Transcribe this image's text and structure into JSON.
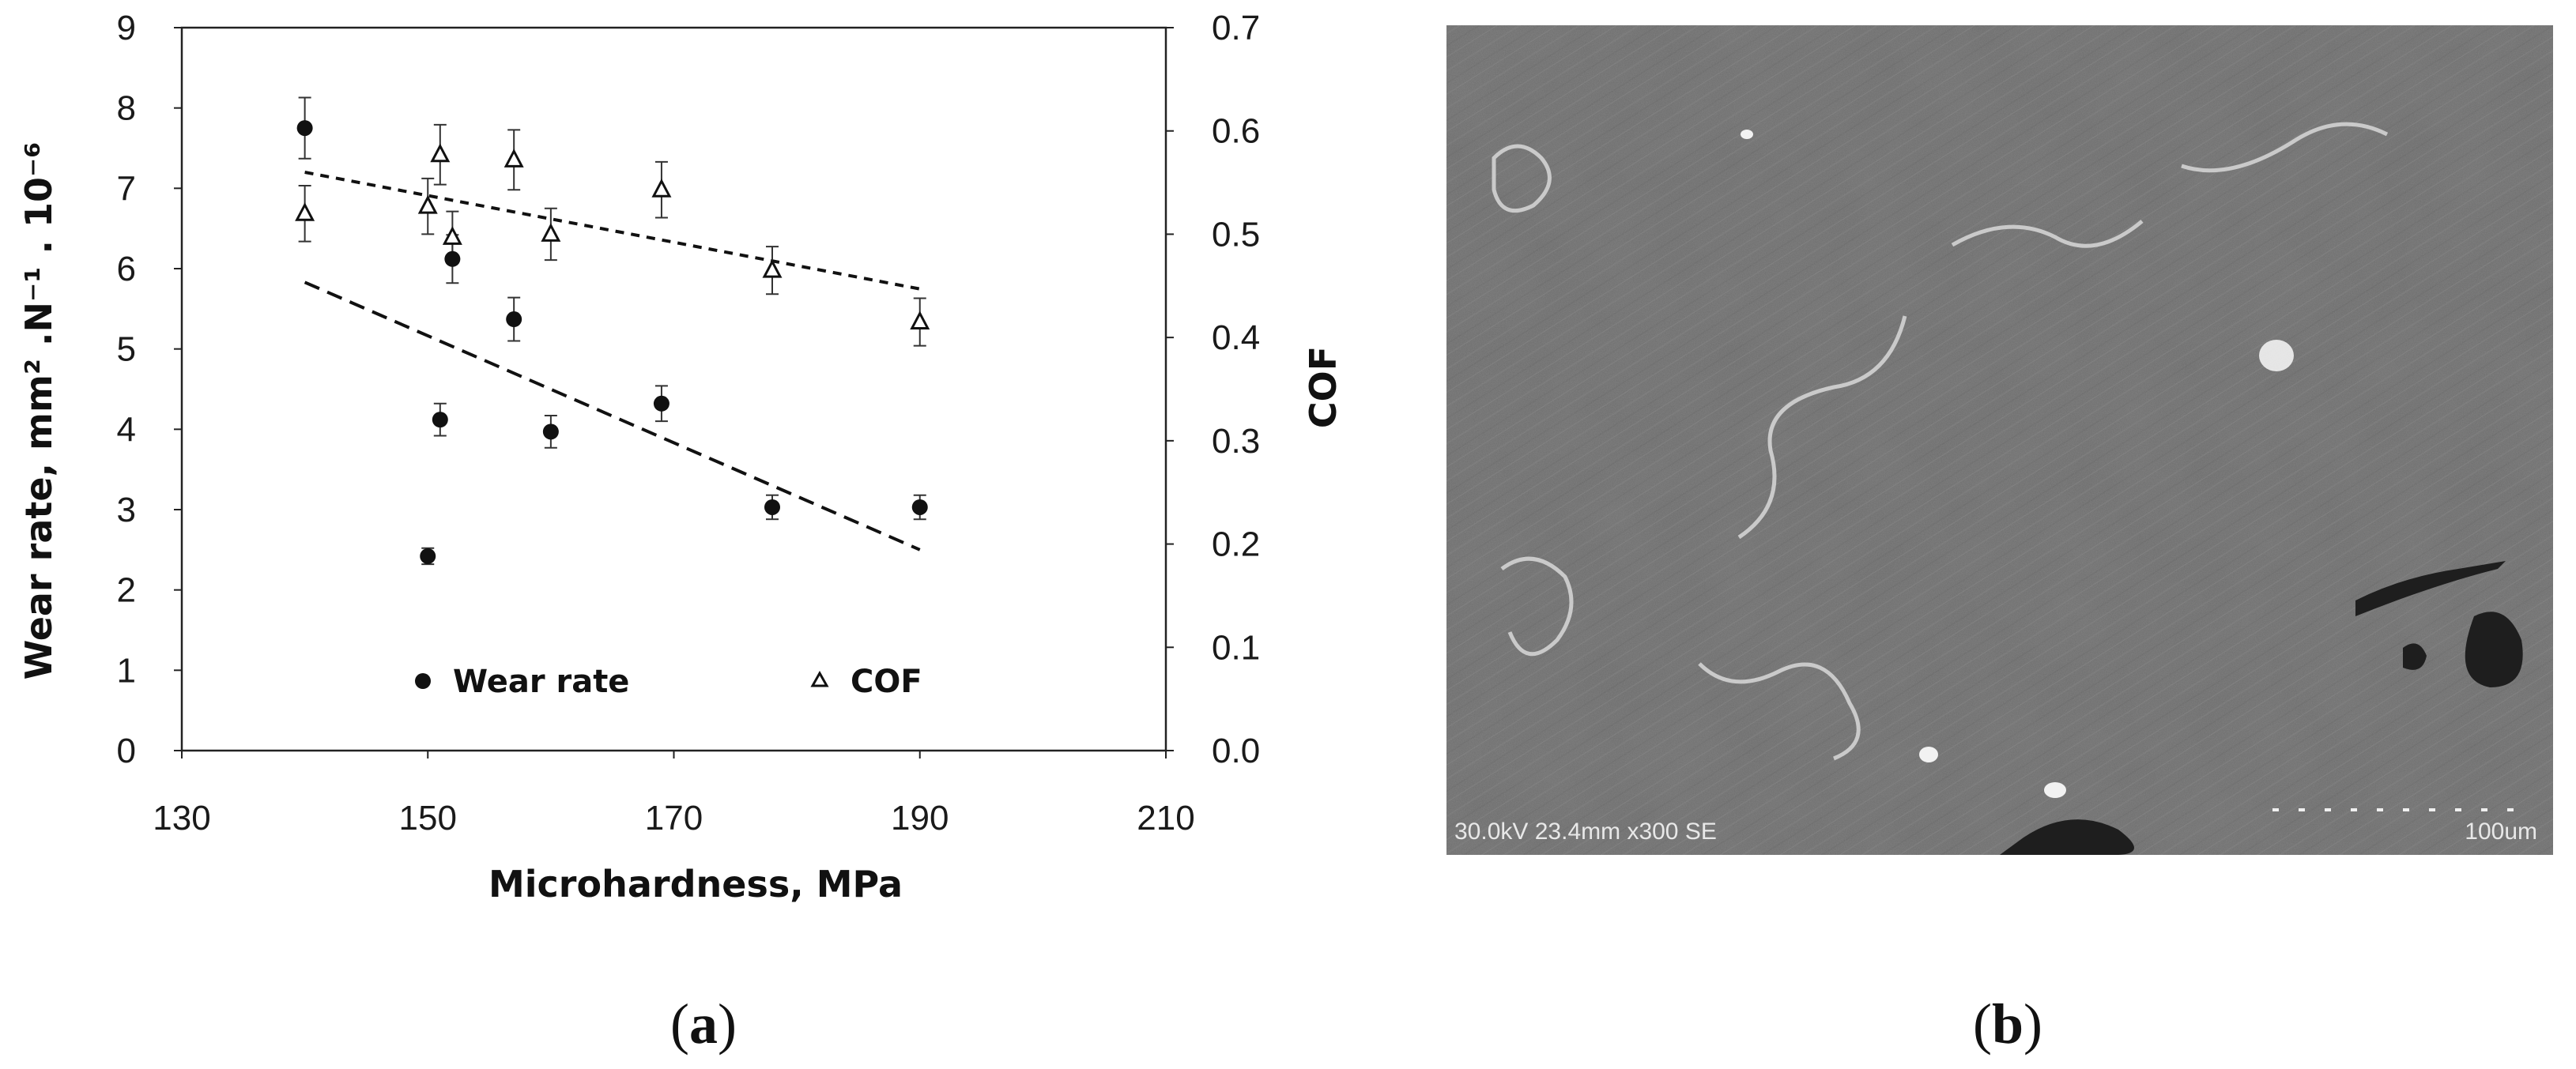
{
  "chart_data": {
    "type": "scatter",
    "xlabel": "Microhardness, MPa",
    "ylabel": "Wear rate,  mm² .N⁻¹ . 10⁻⁶",
    "y2label": "COF",
    "xlim": [
      130,
      210
    ],
    "ylim": [
      0,
      9
    ],
    "y2lim": [
      0.0,
      0.7
    ],
    "xticks": [
      "130",
      "150",
      "170",
      "190",
      "210"
    ],
    "yticks": [
      "0",
      "1",
      "2",
      "3",
      "4",
      "5",
      "6",
      "7",
      "8",
      "9"
    ],
    "y2ticks": [
      "0.0",
      "0.1",
      "0.2",
      "0.3",
      "0.4",
      "0.5",
      "0.6",
      "0.7"
    ],
    "grid": false,
    "legend_position": "bottom",
    "series": [
      {
        "name": "Wear rate",
        "axis": "left",
        "marker": "filled-circle",
        "points": [
          {
            "x": 140,
            "y": 7.75,
            "err": 0.38
          },
          {
            "x": 150,
            "y": 2.42,
            "err": 0.1
          },
          {
            "x": 151,
            "y": 4.12,
            "err": 0.2
          },
          {
            "x": 152,
            "y": 6.12,
            "err": 0.3
          },
          {
            "x": 157,
            "y": 5.37,
            "err": 0.27
          },
          {
            "x": 160,
            "y": 3.97,
            "err": 0.2
          },
          {
            "x": 169,
            "y": 4.32,
            "err": 0.22
          },
          {
            "x": 178,
            "y": 3.03,
            "err": 0.15
          },
          {
            "x": 190,
            "y": 3.03,
            "err": 0.15
          }
        ],
        "trendline": {
          "x": [
            140,
            190
          ],
          "y": [
            5.83,
            2.5
          ]
        }
      },
      {
        "name": "COF",
        "axis": "right",
        "marker": "open-triangle",
        "points": [
          {
            "x": 140,
            "y": 0.52,
            "err": 0.027
          },
          {
            "x": 150,
            "y": 0.527,
            "err": 0.027
          },
          {
            "x": 151,
            "y": 0.577,
            "err": 0.029
          },
          {
            "x": 152,
            "y": 0.497,
            "err": 0.025
          },
          {
            "x": 157,
            "y": 0.572,
            "err": 0.029
          },
          {
            "x": 160,
            "y": 0.5,
            "err": 0.025
          },
          {
            "x": 169,
            "y": 0.543,
            "err": 0.027
          },
          {
            "x": 178,
            "y": 0.465,
            "err": 0.023
          },
          {
            "x": 190,
            "y": 0.415,
            "err": 0.023
          }
        ],
        "trendline": {
          "x": [
            140,
            190
          ],
          "y": [
            0.56,
            0.447
          ]
        }
      }
    ]
  },
  "sem_image": {
    "info_text": "30.0kV 23.4mm x300 SE",
    "scale_text": "100um"
  },
  "panel_labels": {
    "a": "a",
    "b": "b"
  }
}
